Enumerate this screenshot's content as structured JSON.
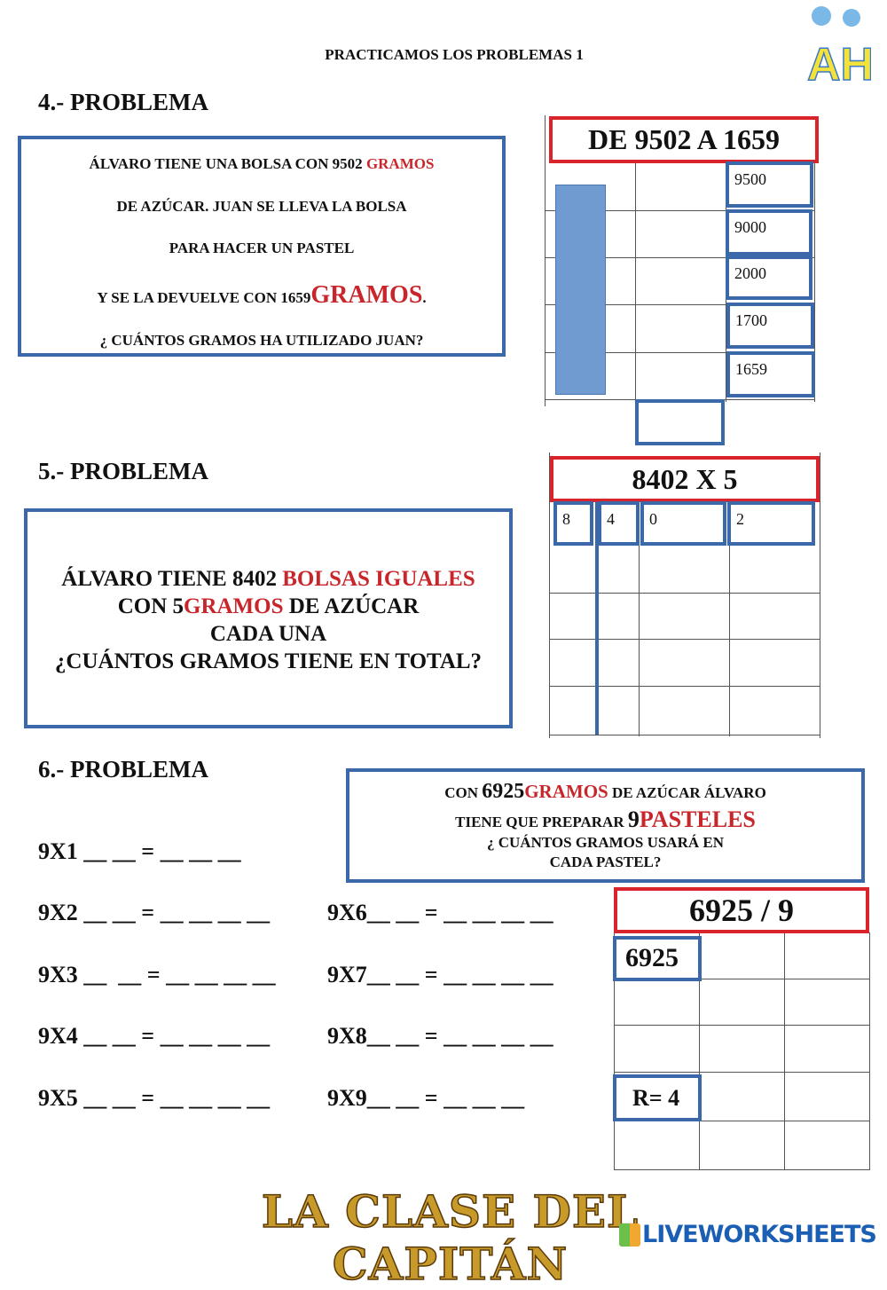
{
  "title": "PRACTICAMOS LOS PROBLEMAS  1",
  "logo_letters": "AH",
  "p4": {
    "heading": "4.- PROBLEMA",
    "lines": [
      [
        "ÁLVARO TIENE UNA BOLSA CON 9502 ",
        "GRAMOS",
        ""
      ],
      [
        "DE AZÚCAR. JUAN SE LLEVA LA BOLSA"
      ],
      [
        "PARA HACER UN PASTEL"
      ],
      [
        "Y SE LA DEVUELVE CON 1659",
        "GRAMOS",
        "."
      ],
      [
        "¿ CUÁNTOS GRAMOS HA UTILIZADO JUAN?"
      ]
    ],
    "operation": "DE 9502 A 1659",
    "steps": [
      "9500",
      "9000",
      "2000",
      "1700",
      "1659"
    ],
    "answer": ""
  },
  "p5": {
    "heading": "5.- PROBLEMA",
    "l1a": "ÁLVARO TIENE 8402 ",
    "l1b": "BOLSAS IGUALES",
    "l2a": "CON 5",
    "l2b": "GRAMOS",
    "l2c": " DE AZÚCAR",
    "l3": "CADA UNA",
    "l4": "¿CUÁNTOS GRAMOS TIENE EN TOTAL?",
    "operation": "8402 X 5",
    "digits": [
      "8",
      "4",
      "0",
      "2"
    ]
  },
  "p6": {
    "heading": "6.- PROBLEMA",
    "l1a": "CON ",
    "l1b": "6925",
    "l1c": "GRAMOS",
    "l1d": " DE AZÚCAR ÁLVARO",
    "l2a": "TIENE QUE PREPARAR ",
    "l2b": "9",
    "l2c": "PASTELES",
    "l3": "¿ CUÁNTOS GRAMOS USARÁ EN",
    "l4": "CADA PASTEL?",
    "table_left": [
      "9X1 __ __ = __ __ __",
      "9X2 __ __ = __ __ __ __",
      "9X3 __  __ = __ __ __ __",
      "9X4 __ __ = __ __ __ __",
      "9X5 __ __ = __ __ __ __"
    ],
    "table_right": [
      "9X6__ __ = __ __ __ __",
      "9X7__ __ = __ __ __ __",
      "9X8__ __ = __ __ __ __",
      "9X9__ __ = __ __ __"
    ],
    "operation": "6925 / 9",
    "dividend": "6925",
    "remainder": "R= 4"
  },
  "footer": {
    "logo": "LA CLASE DEL CAPITÁN",
    "brand": "LIVEWORKSHEETS"
  },
  "colors": {
    "box_blue": "#3a68a8",
    "red": "#d9242b",
    "bar": "#6f9bd0",
    "gold": "#c89a2a"
  }
}
